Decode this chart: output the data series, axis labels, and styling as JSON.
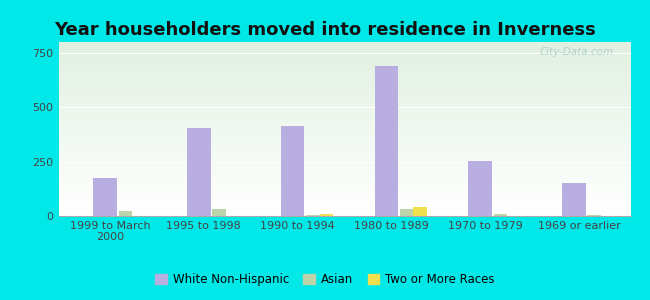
{
  "title": "Year householders moved into residence in Inverness",
  "categories": [
    "1999 to March\n2000",
    "1995 to 1998",
    "1990 to 1994",
    "1980 to 1989",
    "1970 to 1979",
    "1969 or earlier"
  ],
  "white_non_hispanic": [
    175,
    405,
    415,
    690,
    255,
    150
  ],
  "asian": [
    25,
    30,
    5,
    30,
    10,
    5
  ],
  "two_or_more_races": [
    0,
    0,
    10,
    40,
    0,
    0
  ],
  "bar_width": 0.18,
  "white_color": "#b8aee0",
  "asian_color": "#bdd4aa",
  "two_color": "#f0e050",
  "bg_outer": "#00e8e8",
  "ylim": [
    0,
    800
  ],
  "yticks": [
    0,
    250,
    500,
    750
  ],
  "title_fontsize": 13,
  "tick_fontsize": 8,
  "legend_fontsize": 8.5,
  "watermark": "City-Data.com"
}
